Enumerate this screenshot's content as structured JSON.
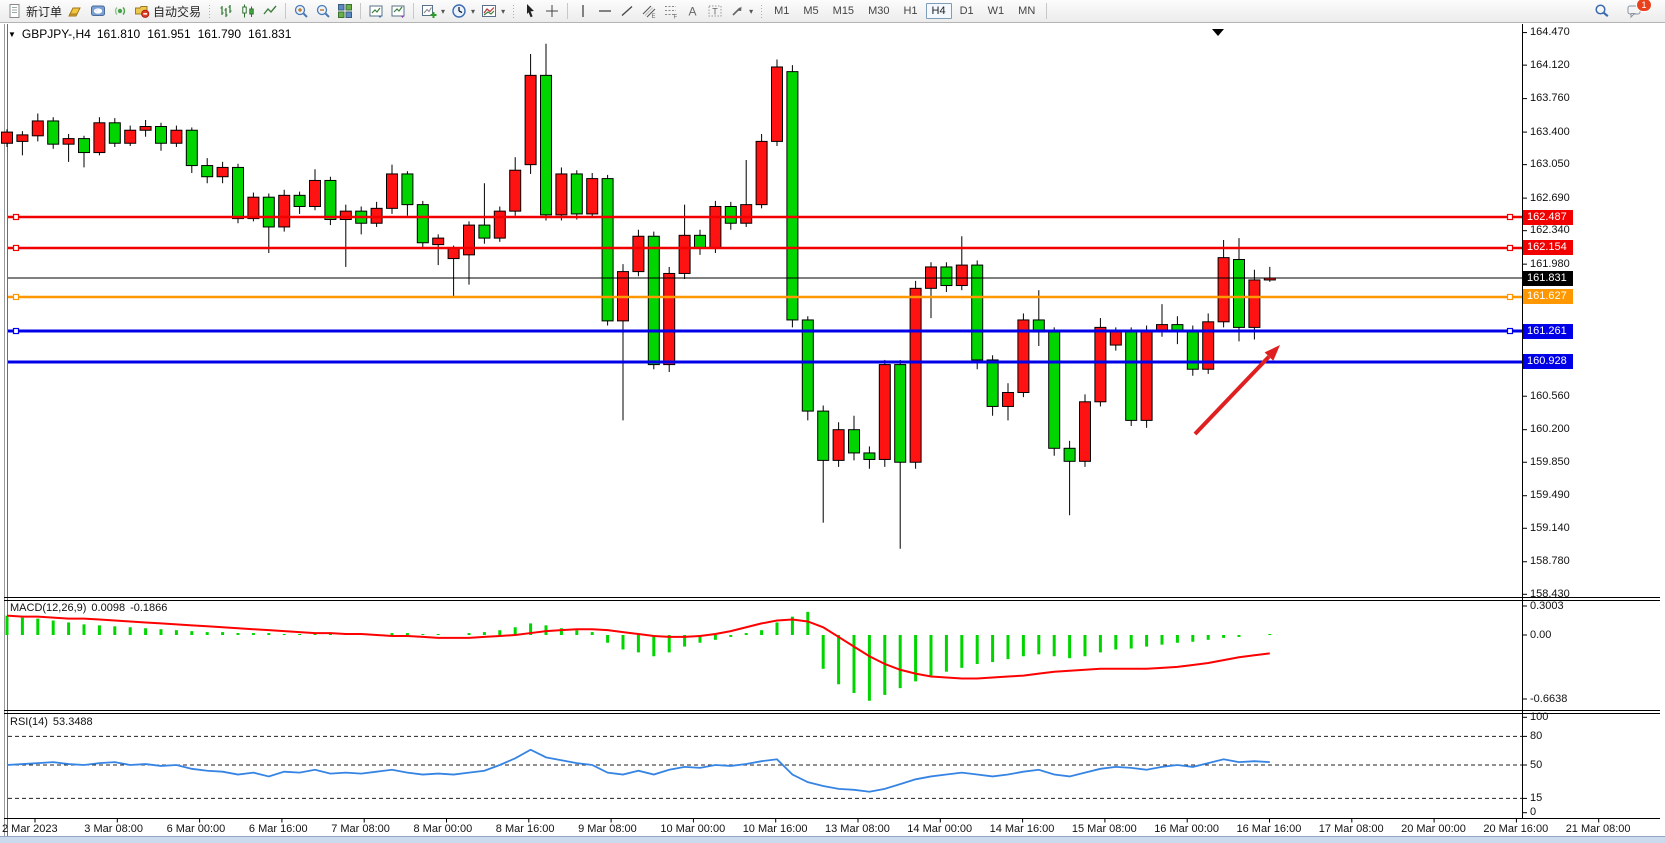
{
  "toolbar": {
    "new_order_label": "新订单",
    "auto_trading_label": "自动交易",
    "timeframes": [
      "M1",
      "M5",
      "M15",
      "M30",
      "H1",
      "H4",
      "D1",
      "W1",
      "MN"
    ],
    "active_timeframe": "H4",
    "notification_badge": "1",
    "icons": [
      "new-order-icon",
      "market-watch-icon",
      "data-window-icon",
      "signal-icon",
      "auto-trading-icon",
      "bar-chart-icon",
      "candlestick-icon",
      "line-chart-icon",
      "zoom-in-icon",
      "zoom-out-icon",
      "tile-windows-icon",
      "window-a-icon",
      "window-b-icon",
      "new-chart-icon",
      "period-icon",
      "template-icon",
      "cursor-icon",
      "crosshair-icon",
      "vertical-line-icon",
      "horizontal-line-icon",
      "trendline-icon",
      "channel-icon",
      "fibonacci-icon",
      "text-icon",
      "text-label-icon",
      "shapes-icon",
      "search-icon",
      "chat-icon"
    ]
  },
  "chart": {
    "title": {
      "marker": "▼",
      "symbol": "GBPJPY-,H4",
      "open": "161.810",
      "high": "161.951",
      "low": "161.790",
      "close": "161.831"
    },
    "type": "candlestick",
    "colors": {
      "bull": "#ff1212",
      "bear": "#00d500",
      "wick": "#000000",
      "level_red": "#f20000",
      "level_orange": "#ff9800",
      "level_blue": "#0000e8",
      "bid_line": "#000000",
      "macd_hist": "#00d500",
      "macd_signal": "#ff0000",
      "rsi_line": "#3584e4",
      "arrow": "#e02020"
    },
    "y_axis_ticks": [
      "164.470",
      "164.120",
      "163.760",
      "163.400",
      "163.050",
      "162.690",
      "162.340",
      "161.980",
      "160.560",
      "160.200",
      "159.850",
      "159.490",
      "159.140",
      "158.780",
      "158.430"
    ],
    "price_badges": [
      {
        "label": "162.487",
        "price": 162.487,
        "color": "#f20000"
      },
      {
        "label": "162.154",
        "price": 162.154,
        "color": "#f20000"
      },
      {
        "label": "161.831",
        "price": 161.831,
        "color": "#000000"
      },
      {
        "label": "161.627",
        "price": 161.627,
        "color": "#ff9800"
      },
      {
        "label": "161.261",
        "price": 161.261,
        "color": "#0000e8"
      },
      {
        "label": "160.928",
        "price": 160.928,
        "color": "#0000e8"
      }
    ],
    "levels": [
      {
        "price": 162.487,
        "color": "#f20000",
        "width": 2.5,
        "handles": true
      },
      {
        "price": 162.154,
        "color": "#f20000",
        "width": 2.5,
        "handles": true
      },
      {
        "price": 161.831,
        "color": "#000000",
        "width": 1,
        "handles": false
      },
      {
        "price": 161.627,
        "color": "#ff9800",
        "width": 2.5,
        "handles": true
      },
      {
        "price": 161.261,
        "color": "#0000e8",
        "width": 3,
        "handles": true
      },
      {
        "price": 160.928,
        "color": "#0000e8",
        "width": 3,
        "handles": false
      }
    ],
    "x_axis": [
      "2 Mar 2023",
      "3 Mar 08:00",
      "6 Mar 00:00",
      "6 Mar 16:00",
      "7 Mar 08:00",
      "8 Mar 00:00",
      "8 Mar 16:00",
      "9 Mar 08:00",
      "10 Mar 00:00",
      "10 Mar 16:00",
      "13 Mar 08:00",
      "14 Mar 00:00",
      "14 Mar 16:00",
      "15 Mar 08:00",
      "16 Mar 00:00",
      "16 Mar 16:00",
      "17 Mar 08:00",
      "20 Mar 00:00",
      "20 Mar 16:00",
      "21 Mar 08:00"
    ],
    "candles": [
      [
        163.28,
        163.43,
        163.24,
        163.4
      ],
      [
        163.3,
        163.41,
        163.15,
        163.37
      ],
      [
        163.36,
        163.6,
        163.3,
        163.52
      ],
      [
        163.52,
        163.56,
        163.22,
        163.27
      ],
      [
        163.27,
        163.38,
        163.08,
        163.33
      ],
      [
        163.33,
        163.36,
        163.02,
        163.18
      ],
      [
        163.18,
        163.56,
        163.15,
        163.5
      ],
      [
        163.5,
        163.55,
        163.24,
        163.28
      ],
      [
        163.28,
        163.47,
        163.25,
        163.42
      ],
      [
        163.42,
        163.53,
        163.35,
        163.46
      ],
      [
        163.46,
        163.5,
        163.2,
        163.28
      ],
      [
        163.28,
        163.47,
        163.24,
        163.42
      ],
      [
        163.42,
        163.45,
        162.96,
        163.04
      ],
      [
        163.04,
        163.12,
        162.85,
        162.92
      ],
      [
        162.92,
        163.08,
        162.85,
        163.02
      ],
      [
        163.02,
        163.06,
        162.42,
        162.47
      ],
      [
        162.47,
        162.75,
        162.44,
        162.7
      ],
      [
        162.7,
        162.74,
        162.1,
        162.38
      ],
      [
        162.38,
        162.78,
        162.33,
        162.72
      ],
      [
        162.72,
        162.76,
        162.52,
        162.6
      ],
      [
        162.6,
        163.0,
        162.56,
        162.88
      ],
      [
        162.88,
        162.92,
        162.4,
        162.46
      ],
      [
        162.46,
        162.62,
        161.95,
        162.55
      ],
      [
        162.55,
        162.6,
        162.3,
        162.42
      ],
      [
        162.42,
        162.65,
        162.38,
        162.58
      ],
      [
        162.58,
        163.05,
        162.52,
        162.95
      ],
      [
        162.95,
        162.98,
        162.5,
        162.62
      ],
      [
        162.62,
        162.66,
        162.15,
        162.21
      ],
      [
        162.19,
        162.3,
        161.97,
        162.26
      ],
      [
        162.04,
        162.18,
        161.62,
        162.15
      ],
      [
        162.08,
        162.44,
        161.76,
        162.4
      ],
      [
        162.4,
        162.85,
        162.2,
        162.26
      ],
      [
        162.26,
        162.6,
        162.22,
        162.55
      ],
      [
        162.55,
        163.13,
        162.5,
        162.99
      ],
      [
        163.05,
        164.24,
        162.95,
        164.01
      ],
      [
        164.01,
        164.35,
        162.45,
        162.51
      ],
      [
        162.51,
        163.02,
        162.45,
        162.95
      ],
      [
        162.95,
        162.99,
        162.46,
        162.52
      ],
      [
        162.52,
        162.96,
        162.48,
        162.9
      ],
      [
        162.9,
        162.94,
        161.32,
        161.37
      ],
      [
        161.37,
        161.98,
        160.3,
        161.9
      ],
      [
        161.9,
        162.35,
        161.85,
        162.28
      ],
      [
        162.28,
        162.33,
        160.85,
        160.9
      ],
      [
        160.9,
        161.95,
        160.82,
        161.88
      ],
      [
        161.88,
        162.62,
        161.82,
        162.29
      ],
      [
        162.29,
        162.35,
        162.08,
        162.15
      ],
      [
        162.15,
        162.66,
        162.1,
        162.6
      ],
      [
        162.6,
        162.65,
        162.35,
        162.42
      ],
      [
        162.42,
        163.1,
        162.38,
        162.62
      ],
      [
        162.62,
        163.38,
        162.58,
        163.3
      ],
      [
        163.3,
        164.18,
        163.25,
        164.1
      ],
      [
        164.05,
        164.12,
        161.3,
        161.38
      ],
      [
        161.38,
        161.42,
        160.3,
        160.4
      ],
      [
        160.4,
        160.46,
        159.2,
        159.87
      ],
      [
        159.87,
        160.28,
        159.8,
        160.2
      ],
      [
        160.2,
        160.35,
        159.87,
        159.95
      ],
      [
        159.95,
        160.02,
        159.78,
        159.88
      ],
      [
        159.88,
        160.95,
        159.8,
        160.9
      ],
      [
        160.9,
        160.95,
        158.92,
        159.85
      ],
      [
        159.85,
        161.8,
        159.78,
        161.72
      ],
      [
        161.72,
        162.0,
        161.4,
        161.95
      ],
      [
        161.95,
        162.0,
        161.68,
        161.75
      ],
      [
        161.75,
        162.28,
        161.7,
        161.97
      ],
      [
        161.97,
        162.02,
        160.85,
        160.95
      ],
      [
        160.95,
        161.0,
        160.35,
        160.45
      ],
      [
        160.45,
        160.7,
        160.3,
        160.6
      ],
      [
        160.6,
        161.45,
        160.55,
        161.38
      ],
      [
        161.38,
        161.7,
        161.1,
        161.25
      ],
      [
        161.25,
        161.3,
        159.92,
        160.0
      ],
      [
        160.0,
        160.08,
        159.28,
        159.86
      ],
      [
        159.86,
        160.58,
        159.8,
        160.5
      ],
      [
        160.5,
        161.4,
        160.45,
        161.3
      ],
      [
        161.11,
        161.3,
        161.05,
        161.26
      ],
      [
        161.26,
        161.3,
        160.24,
        160.3
      ],
      [
        160.3,
        161.32,
        160.22,
        161.26
      ],
      [
        161.26,
        161.55,
        161.2,
        161.33
      ],
      [
        161.33,
        161.42,
        161.12,
        161.26
      ],
      [
        161.26,
        161.32,
        160.78,
        160.85
      ],
      [
        160.85,
        161.45,
        160.8,
        161.36
      ],
      [
        161.36,
        162.24,
        161.3,
        162.05
      ],
      [
        162.03,
        162.26,
        161.15,
        161.3
      ],
      [
        161.3,
        161.92,
        161.17,
        161.81
      ],
      [
        161.81,
        161.951,
        161.79,
        161.831
      ]
    ],
    "annotation_arrow": {
      "from": [
        1195,
        434
      ],
      "to": [
        1280,
        345
      ]
    },
    "shift_marker": "▼"
  },
  "macd": {
    "label": "MACD(12,26,9)",
    "value_main": "0.0098",
    "value_signal": "-0.1866",
    "scale": [
      "0.3003",
      "0.00",
      "-0.6638"
    ],
    "histogram": [
      0.2,
      0.18,
      0.17,
      0.15,
      0.13,
      0.11,
      0.1,
      0.09,
      0.08,
      0.07,
      0.06,
      0.05,
      0.04,
      0.03,
      0.03,
      0.02,
      0.02,
      0.02,
      0.01,
      0.01,
      0.02,
      0.02,
      0.01,
      0.01,
      0.01,
      0.02,
      0.02,
      0.01,
      0.01,
      0.0,
      0.02,
      0.03,
      0.05,
      0.08,
      0.12,
      0.1,
      0.07,
      0.05,
      0.03,
      -0.08,
      -0.15,
      -0.18,
      -0.22,
      -0.18,
      -0.12,
      -0.08,
      -0.05,
      -0.02,
      0.02,
      0.05,
      0.13,
      0.19,
      0.24,
      -0.35,
      -0.51,
      -0.6,
      -0.68,
      -0.62,
      -0.55,
      -0.48,
      -0.42,
      -0.38,
      -0.34,
      -0.3,
      -0.28,
      -0.25,
      -0.22,
      -0.2,
      -0.22,
      -0.24,
      -0.22,
      -0.18,
      -0.15,
      -0.14,
      -0.12,
      -0.1,
      -0.08,
      -0.07,
      -0.05,
      -0.03,
      -0.02,
      0.0,
      0.01
    ],
    "signal": [
      0.2,
      0.19,
      0.19,
      0.18,
      0.17,
      0.17,
      0.16,
      0.15,
      0.14,
      0.13,
      0.12,
      0.11,
      0.1,
      0.09,
      0.08,
      0.07,
      0.06,
      0.05,
      0.04,
      0.03,
      0.02,
      0.02,
      0.01,
      0.01,
      0.0,
      -0.01,
      -0.01,
      -0.02,
      -0.03,
      -0.03,
      -0.03,
      -0.02,
      -0.01,
      0.0,
      0.02,
      0.04,
      0.05,
      0.06,
      0.06,
      0.05,
      0.03,
      0.01,
      -0.01,
      -0.02,
      -0.02,
      -0.01,
      0.01,
      0.04,
      0.08,
      0.12,
      0.15,
      0.16,
      0.14,
      0.08,
      -0.02,
      -0.12,
      -0.22,
      -0.3,
      -0.36,
      -0.4,
      -0.43,
      -0.44,
      -0.45,
      -0.45,
      -0.44,
      -0.43,
      -0.42,
      -0.4,
      -0.38,
      -0.37,
      -0.36,
      -0.35,
      -0.35,
      -0.35,
      -0.35,
      -0.34,
      -0.33,
      -0.31,
      -0.29,
      -0.26,
      -0.23,
      -0.21,
      -0.19
    ]
  },
  "rsi": {
    "label": "RSI(14)",
    "value": "53.3488",
    "scale": [
      "100",
      "80",
      "50",
      "15",
      "0"
    ],
    "dashed_levels": [
      80,
      50,
      15
    ],
    "line": [
      50,
      51,
      52,
      53,
      51,
      50,
      52,
      53,
      50,
      51,
      49,
      50,
      46,
      44,
      43,
      40,
      42,
      38,
      43,
      42,
      45,
      41,
      42,
      41,
      43,
      45,
      42,
      40,
      41,
      40,
      42,
      44,
      50,
      57,
      66,
      58,
      55,
      52,
      50,
      42,
      40,
      44,
      40,
      45,
      48,
      47,
      50,
      49,
      51,
      54,
      56,
      40,
      32,
      28,
      25,
      24,
      22,
      25,
      30,
      35,
      38,
      40,
      42,
      40,
      38,
      40,
      43,
      45,
      40,
      38,
      42,
      46,
      48,
      47,
      45,
      48,
      50,
      48,
      52,
      56,
      53,
      54,
      53
    ]
  }
}
